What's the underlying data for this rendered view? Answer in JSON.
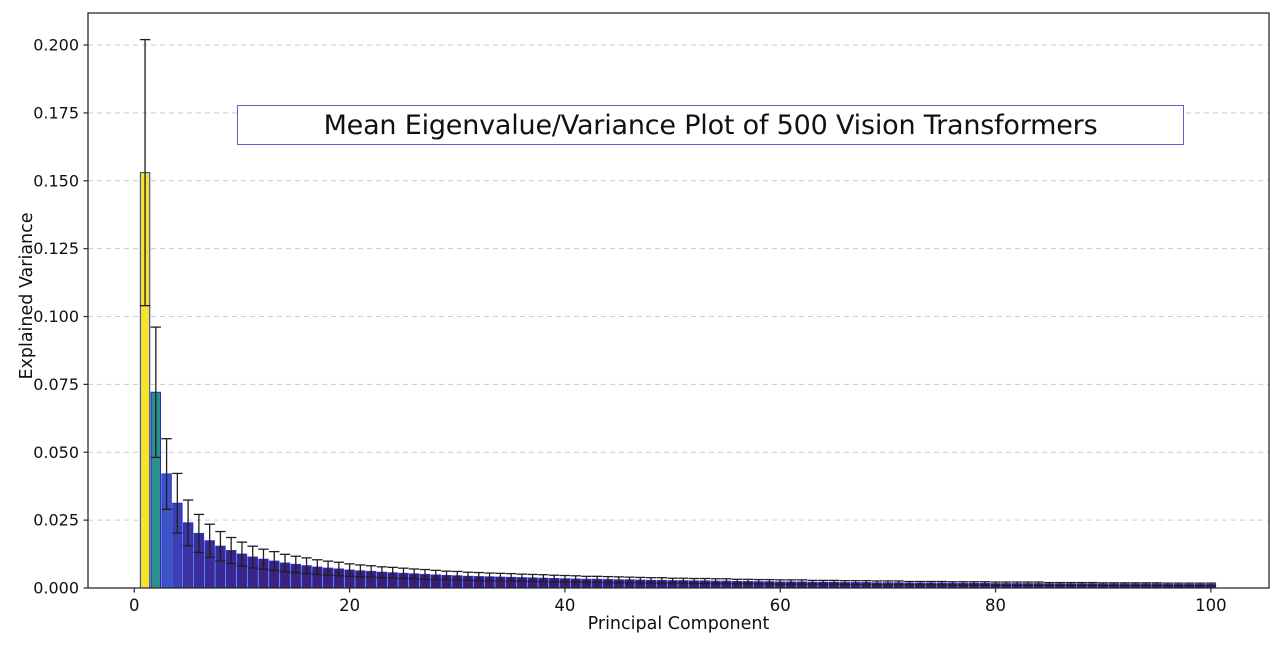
{
  "figure": {
    "background": "#ffffff"
  },
  "style": {
    "spine_color": "#2b2b2b",
    "grid_color": "#cccccc",
    "tick_color": "#2b2b2b",
    "text_color": "#111111",
    "bar_edge_color": "#2330bb",
    "error_bar_color": "#1f1f1f",
    "title_border_color": "#5c63c4",
    "title_fill": "#ffffff"
  },
  "chart_data": {
    "type": "bar",
    "title": "Mean Eigenvalue/Variance Plot of 500 Vision Transformers",
    "xlabel": "Principal Component",
    "ylabel": "Explained Variance",
    "legend": "none",
    "grid": "horizontal-dashed",
    "xlim": [
      -4.3,
      105.4
    ],
    "ylim": [
      0,
      0.2118
    ],
    "xticks": [
      0,
      20,
      40,
      60,
      80,
      100
    ],
    "xtick_labels": [
      "0",
      "20",
      "40",
      "60",
      "80",
      "100"
    ],
    "yticks": [
      0,
      0.025,
      0.05,
      0.075,
      0.1,
      0.125,
      0.15,
      0.175,
      0.2
    ],
    "ytick_labels": [
      "0.000",
      "0.025",
      "0.050",
      "0.075",
      "0.100",
      "0.125",
      "0.150",
      "0.175",
      "0.200"
    ],
    "bar_color_mapping": "value-normalized-colormap",
    "colormap_stops": [
      {
        "t": 0.0,
        "color": "#3a166a"
      },
      {
        "t": 0.045,
        "color": "#3c1f7a"
      },
      {
        "t": 0.1,
        "color": "#3b2890"
      },
      {
        "t": 0.155,
        "color": "#3b33a2"
      },
      {
        "t": 0.21,
        "color": "#3c42b6"
      },
      {
        "t": 0.28,
        "color": "#3c56c8"
      },
      {
        "t": 0.37,
        "color": "#3169b4"
      },
      {
        "t": 0.47,
        "color": "#2b8f8e"
      },
      {
        "t": 0.62,
        "color": "#3cb277"
      },
      {
        "t": 0.8,
        "color": "#a9d94d"
      },
      {
        "t": 1.0,
        "color": "#f7e327"
      }
    ],
    "x": [
      1,
      2,
      3,
      4,
      5,
      6,
      7,
      8,
      9,
      10,
      11,
      12,
      13,
      14,
      15,
      16,
      17,
      18,
      19,
      20,
      21,
      22,
      23,
      24,
      25,
      26,
      27,
      28,
      29,
      30,
      31,
      32,
      33,
      34,
      35,
      36,
      37,
      38,
      39,
      40,
      41,
      42,
      43,
      44,
      45,
      46,
      47,
      48,
      49,
      50,
      51,
      52,
      53,
      54,
      55,
      56,
      57,
      58,
      59,
      60,
      61,
      62,
      63,
      64,
      65,
      66,
      67,
      68,
      69,
      70,
      71,
      72,
      73,
      74,
      75,
      76,
      77,
      78,
      79,
      80,
      81,
      82,
      83,
      84,
      85,
      86,
      87,
      88,
      89,
      90,
      91,
      92,
      93,
      94,
      95,
      96,
      97,
      98,
      99,
      100
    ],
    "values": [
      0.153,
      0.0721,
      0.042,
      0.0312,
      0.024,
      0.0201,
      0.0174,
      0.0154,
      0.0138,
      0.0125,
      0.0114,
      0.0106,
      0.0099,
      0.0092,
      0.0087,
      0.0082,
      0.0077,
      0.0073,
      0.007,
      0.0066,
      0.0063,
      0.0061,
      0.0058,
      0.0056,
      0.0054,
      0.0052,
      0.005,
      0.0048,
      0.0046,
      0.0045,
      0.0043,
      0.0042,
      0.0041,
      0.004,
      0.0039,
      0.0038,
      0.0037,
      0.0036,
      0.0035,
      0.0034,
      0.0033,
      0.0032,
      0.0032,
      0.0031,
      0.003,
      0.003,
      0.0029,
      0.0028,
      0.0028,
      0.0027,
      0.0027,
      0.0026,
      0.0026,
      0.0025,
      0.0025,
      0.0024,
      0.0024,
      0.0023,
      0.0023,
      0.0022,
      0.0022,
      0.0022,
      0.0021,
      0.0021,
      0.0021,
      0.002,
      0.002,
      0.002,
      0.0019,
      0.0019,
      0.0019,
      0.0018,
      0.0018,
      0.0018,
      0.0018,
      0.0017,
      0.0017,
      0.0017,
      0.0017,
      0.0016,
      0.0016,
      0.0016,
      0.0016,
      0.0016,
      0.0015,
      0.0015,
      0.0015,
      0.0015,
      0.0015,
      0.0014,
      0.0014,
      0.0014,
      0.0014,
      0.0014,
      0.0014,
      0.0013,
      0.0013,
      0.0013,
      0.0013,
      0.0013
    ],
    "errors": [
      0.049,
      0.024,
      0.013,
      0.011,
      0.0084,
      0.007,
      0.0061,
      0.0054,
      0.0048,
      0.0044,
      0.004,
      0.0037,
      0.0035,
      0.0032,
      0.003,
      0.0029,
      0.0027,
      0.0026,
      0.0025,
      0.0023,
      0.0022,
      0.0021,
      0.002,
      0.002,
      0.0019,
      0.0018,
      0.0018,
      0.0017,
      0.0016,
      0.0016,
      0.0015,
      0.0015,
      0.0014,
      0.0014,
      0.0014,
      0.0013,
      0.0013,
      0.0013,
      0.0012,
      0.0012,
      0.0012,
      0.0011,
      0.0011,
      0.0011,
      0.0011,
      0.001,
      0.001,
      0.001,
      0.001,
      0.0009,
      0.0009,
      0.0009,
      0.0009,
      0.0009,
      0.0009,
      0.0008,
      0.0008,
      0.0008,
      0.0008,
      0.0008,
      0.0008,
      0.0008,
      0.0007,
      0.0007,
      0.0007,
      0.0007,
      0.0007,
      0.0007,
      0.0007,
      0.0007,
      0.0007,
      0.0006,
      0.0006,
      0.0006,
      0.0006,
      0.0006,
      0.0006,
      0.0006,
      0.0006,
      0.0006,
      0.0006,
      0.0006,
      0.0006,
      0.0006,
      0.0005,
      0.0005,
      0.0005,
      0.0005,
      0.0005,
      0.0005,
      0.0005,
      0.0005,
      0.0005,
      0.0005,
      0.0005,
      0.0005,
      0.0005,
      0.0005,
      0.0005,
      0.0005
    ]
  }
}
